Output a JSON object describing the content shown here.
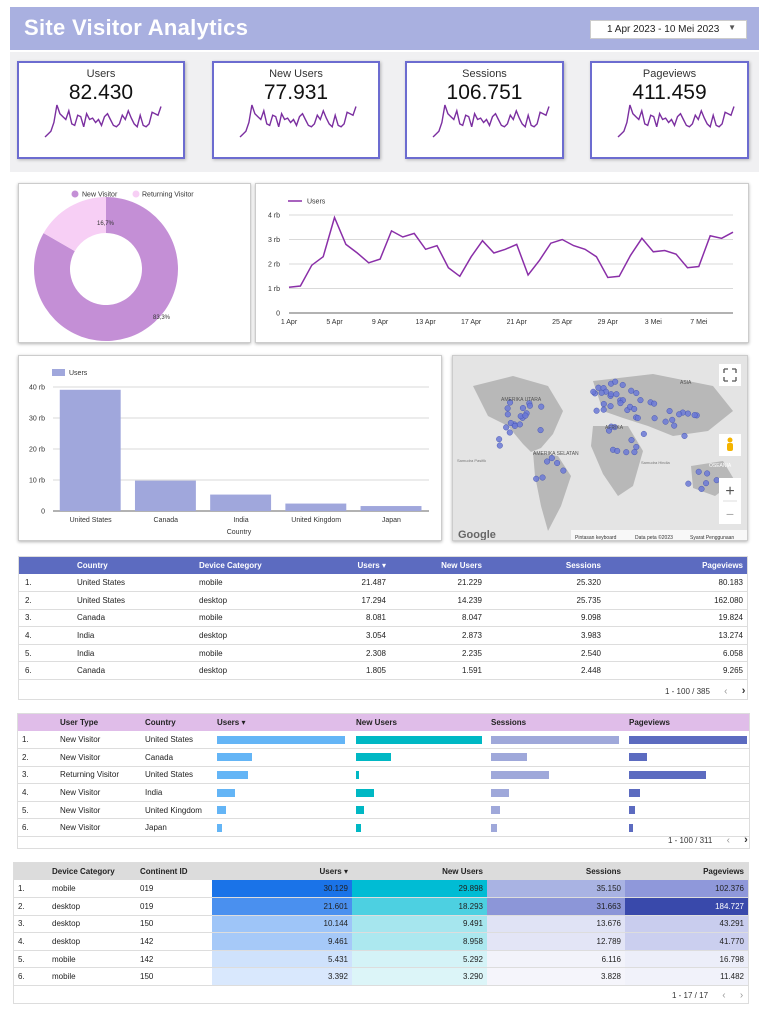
{
  "header": {
    "title": "Site Visitor Analytics",
    "date_range": "1 Apr 2023 - 10 Mei 2023"
  },
  "kpis": [
    {
      "label": "Users",
      "value": "82.430",
      "spark": [
        12,
        14,
        16,
        22,
        34,
        28,
        26,
        24,
        30,
        21,
        20,
        27,
        26,
        19,
        28,
        24,
        25,
        22,
        24,
        20,
        26,
        28,
        24,
        20,
        19,
        21,
        27,
        24,
        30,
        25,
        21,
        19,
        27,
        20,
        19,
        21,
        29,
        28,
        27,
        33
      ]
    },
    {
      "label": "New Users",
      "value": "77.931",
      "spark": [
        12,
        14,
        16,
        22,
        34,
        28,
        26,
        24,
        30,
        21,
        20,
        27,
        26,
        19,
        28,
        24,
        25,
        22,
        24,
        20,
        26,
        28,
        24,
        20,
        19,
        21,
        27,
        24,
        30,
        25,
        21,
        19,
        27,
        20,
        19,
        21,
        29,
        28,
        27,
        33
      ]
    },
    {
      "label": "Sessions",
      "value": "106.751",
      "spark": [
        12,
        14,
        16,
        22,
        34,
        28,
        26,
        24,
        30,
        21,
        20,
        27,
        26,
        19,
        28,
        24,
        25,
        22,
        24,
        20,
        26,
        28,
        24,
        20,
        19,
        21,
        27,
        24,
        30,
        25,
        21,
        19,
        27,
        20,
        19,
        21,
        29,
        28,
        27,
        33
      ]
    },
    {
      "label": "Pageviews",
      "value": "411.459",
      "spark": [
        12,
        14,
        16,
        22,
        34,
        28,
        26,
        24,
        30,
        21,
        20,
        27,
        26,
        19,
        28,
        24,
        25,
        22,
        24,
        20,
        26,
        28,
        24,
        20,
        19,
        21,
        27,
        24,
        30,
        25,
        21,
        19,
        27,
        20,
        19,
        21,
        29,
        28,
        27,
        33
      ]
    }
  ],
  "chart_data": [
    {
      "type": "pie",
      "title": "",
      "legend": [
        "New Visitor",
        "Returning Visitor"
      ],
      "values": [
        83.3,
        16.7
      ],
      "labels": [
        "83,3%",
        "16,7%"
      ],
      "colors": [
        "#c48fd6",
        "#f7cff5"
      ]
    },
    {
      "type": "line",
      "legend": "Users",
      "ylim": [
        0,
        4000
      ],
      "ytick_labels": [
        "0",
        "1 rb",
        "2 rb",
        "3 rb",
        "4 rb"
      ],
      "xtick_labels": [
        "1 Apr",
        "5 Apr",
        "9 Apr",
        "13 Apr",
        "17 Apr",
        "21 Apr",
        "25 Apr",
        "29 Apr",
        "3 Mei",
        "7 Mei"
      ],
      "values": [
        1050,
        1100,
        1950,
        2300,
        3900,
        2800,
        2450,
        2050,
        2200,
        3350,
        3100,
        3250,
        2600,
        2750,
        1850,
        1500,
        2300,
        2950,
        2450,
        2600,
        2800,
        1550,
        2150,
        2850,
        3000,
        2750,
        2600,
        2300,
        1450,
        1500,
        2350,
        3050,
        2500,
        2550,
        2400,
        1850,
        1900,
        3150,
        3050,
        3300
      ],
      "color": "#8a2fa8"
    },
    {
      "type": "bar",
      "legend": "Users",
      "xlabel": "Country",
      "ylim": [
        0,
        40000
      ],
      "ytick_labels": [
        "0",
        "10 rb",
        "20 rb",
        "30 rb",
        "40 rb"
      ],
      "categories": [
        "United States",
        "Canada",
        "India",
        "United Kingdom",
        "Japan"
      ],
      "values": [
        39100,
        9800,
        5300,
        2400,
        1600
      ],
      "color": "#a0a7dc"
    }
  ],
  "map": {
    "labels": [
      "AMERIKA UTARA",
      "AFRIKA",
      "ASIA",
      "Samudra Hindia",
      "Samudra Pasifik",
      "AMERIKA SELATAN",
      "OSEANIA"
    ],
    "footer": {
      "keyboard": "Pintasan keyboard",
      "data": "Data peta ©2023",
      "terms": "Syarat Penggunaan"
    },
    "logo": "Google",
    "zoom_in": "+",
    "zoom_out": "−"
  },
  "table1": {
    "columns": [
      "Country",
      "Device Category",
      "Users ▾",
      "New Users",
      "Sessions",
      "Pageviews"
    ],
    "rows": [
      [
        "1.",
        "United States",
        "mobile",
        "21.487",
        "21.229",
        "25.320",
        "80.183"
      ],
      [
        "2.",
        "United States",
        "desktop",
        "17.294",
        "14.239",
        "25.735",
        "162.080"
      ],
      [
        "3.",
        "Canada",
        "mobile",
        "8.081",
        "8.047",
        "9.098",
        "19.824"
      ],
      [
        "4.",
        "India",
        "desktop",
        "3.054",
        "2.873",
        "3.983",
        "13.274"
      ],
      [
        "5.",
        "India",
        "mobile",
        "2.308",
        "2.235",
        "2.540",
        "6.058"
      ],
      [
        "6.",
        "Canada",
        "desktop",
        "1.805",
        "1.591",
        "2.448",
        "9.265"
      ]
    ],
    "pager": "1 - 100 / 385"
  },
  "table2": {
    "columns": [
      "User Type",
      "Country",
      "Users ▾",
      "New Users",
      "Sessions",
      "Pageviews"
    ],
    "rows": [
      {
        "n": "1.",
        "type": "New Visitor",
        "country": "United States",
        "bars": [
          1.0,
          1.0,
          1.0,
          1.0
        ]
      },
      {
        "n": "2.",
        "type": "New Visitor",
        "country": "Canada",
        "bars": [
          0.27,
          0.28,
          0.28,
          0.15
        ]
      },
      {
        "n": "3.",
        "type": "Returning Visitor",
        "country": "United States",
        "bars": [
          0.24,
          0.02,
          0.45,
          0.65
        ]
      },
      {
        "n": "4.",
        "type": "New Visitor",
        "country": "India",
        "bars": [
          0.14,
          0.14,
          0.14,
          0.09
        ]
      },
      {
        "n": "5.",
        "type": "New Visitor",
        "country": "United Kingdom",
        "bars": [
          0.07,
          0.06,
          0.07,
          0.05
        ]
      },
      {
        "n": "6.",
        "type": "New Visitor",
        "country": "Japan",
        "bars": [
          0.04,
          0.04,
          0.05,
          0.03
        ]
      }
    ],
    "bar_colors": [
      "#64b5f6",
      "#00b8c4",
      "#9fa8da",
      "#5c6bc0"
    ],
    "pager": "1 - 100 / 311"
  },
  "table3": {
    "columns": [
      "Device Category",
      "Continent ID",
      "Users ▾",
      "New Users",
      "Sessions",
      "Pageviews"
    ],
    "rows": [
      [
        "1.",
        "mobile",
        "019",
        "30.129",
        "29.898",
        "35.150",
        "102.376"
      ],
      [
        "2.",
        "desktop",
        "019",
        "21.601",
        "18.293",
        "31.663",
        "184.727"
      ],
      [
        "3.",
        "desktop",
        "150",
        "10.144",
        "9.491",
        "13.676",
        "43.291"
      ],
      [
        "4.",
        "desktop",
        "142",
        "9.461",
        "8.958",
        "12.789",
        "41.770"
      ],
      [
        "5.",
        "mobile",
        "142",
        "5.431",
        "5.292",
        "6.116",
        "16.798"
      ],
      [
        "6.",
        "mobile",
        "150",
        "3.392",
        "3.290",
        "3.828",
        "11.482"
      ]
    ],
    "heat_colors": [
      [
        "#1a73e8",
        "#00bcd4",
        "#a9b3e3",
        "#8f98da"
      ],
      [
        "#4a90ef",
        "#4dd0e1",
        "#8c96d8",
        "#3949ab"
      ],
      [
        "#9ec5f8",
        "#a6e6ee",
        "#e0e3f5",
        "#c9cdee"
      ],
      [
        "#a6c9f8",
        "#ace8ef",
        "#e3e5f6",
        "#cbcfef"
      ],
      [
        "#cfe2fc",
        "#d4f3f7",
        "#f2f3fa",
        "#eceef9"
      ],
      [
        "#d9e8fd",
        "#dcf5f8",
        "#f5f5fb",
        "#f1f2fa"
      ]
    ],
    "pager": "1 - 17 / 17"
  }
}
